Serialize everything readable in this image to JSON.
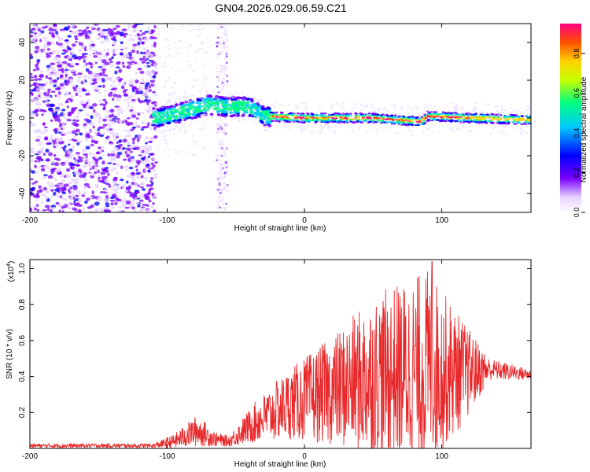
{
  "title": "GN04.2026.029.06.59.C21",
  "chart_data": [
    {
      "type": "heatmap",
      "xlabel": "Height of straight line (km)",
      "ylabel": "Frequency (Hz)",
      "xlim": [
        -200,
        165
      ],
      "ylim": [
        -50,
        50
      ],
      "xticks": [
        -200,
        -100,
        0,
        100
      ],
      "yticks": [
        -40,
        -20,
        0,
        20,
        40
      ],
      "colorbar": {
        "label": "Normalized spectral amplitude",
        "range": [
          0,
          0.95
        ],
        "ticks": [
          0.0,
          0.2,
          0.4,
          0.6,
          0.8
        ],
        "tick_labels": [
          "0.0",
          "0.2",
          "0.4",
          "0.6",
          "0.8"
        ],
        "colormap": [
          "#ffffff",
          "#e6d2ff",
          "#7a00ff",
          "#0000ff",
          "#00c8ff",
          "#00ff80",
          "#c8ff00",
          "#ffd200",
          "#ff5000",
          "#ff0080"
        ]
      },
      "band_center": [
        {
          "x": -200,
          "f": -3
        },
        {
          "x": -160,
          "f": -3
        },
        {
          "x": -110,
          "f": 0
        },
        {
          "x": -100,
          "f": 1
        },
        {
          "x": -80,
          "f": 5
        },
        {
          "x": -70,
          "f": 7
        },
        {
          "x": -55,
          "f": 6
        },
        {
          "x": -40,
          "f": 6
        },
        {
          "x": -30,
          "f": 1
        },
        {
          "x": 0,
          "f": 0
        },
        {
          "x": 50,
          "f": 0
        },
        {
          "x": 85,
          "f": -2
        },
        {
          "x": 90,
          "f": 1
        },
        {
          "x": 120,
          "f": 0
        },
        {
          "x": 165,
          "f": -1
        }
      ]
    },
    {
      "type": "line",
      "xlabel": "Height of straight line (km)",
      "ylabel": "SNR (10 * v/v)",
      "y_multiplier": "(x10",
      "y_multiplier_exp": "4",
      "y_multiplier_close": ")",
      "xlim": [
        -200,
        165
      ],
      "ylim": [
        0,
        1.05
      ],
      "xticks": [
        -200,
        -100,
        0,
        100
      ],
      "yticks": [
        0.2,
        0.4,
        0.6,
        0.8,
        1.0
      ],
      "ytick_labels": [
        "0.2",
        "0.4",
        "0.6",
        "0.8",
        "1.0"
      ],
      "color": "#e8282a",
      "envelope": [
        {
          "x": -200,
          "mean": 0.015,
          "amp": 0.012
        },
        {
          "x": -110,
          "mean": 0.015,
          "amp": 0.012
        },
        {
          "x": -95,
          "mean": 0.04,
          "amp": 0.04
        },
        {
          "x": -78,
          "mean": 0.1,
          "amp": 0.09
        },
        {
          "x": -65,
          "mean": 0.05,
          "amp": 0.04
        },
        {
          "x": -55,
          "mean": 0.04,
          "amp": 0.03
        },
        {
          "x": -35,
          "mean": 0.15,
          "amp": 0.12
        },
        {
          "x": -10,
          "mean": 0.25,
          "amp": 0.2
        },
        {
          "x": 20,
          "mean": 0.32,
          "amp": 0.3
        },
        {
          "x": 50,
          "mean": 0.4,
          "amp": 0.45
        },
        {
          "x": 90,
          "mean": 0.45,
          "amp": 0.55
        },
        {
          "x": 115,
          "mean": 0.42,
          "amp": 0.3
        },
        {
          "x": 135,
          "mean": 0.44,
          "amp": 0.06
        },
        {
          "x": 165,
          "mean": 0.41,
          "amp": 0.03
        }
      ],
      "peak": {
        "x": 93,
        "y": 1.04
      }
    }
  ]
}
